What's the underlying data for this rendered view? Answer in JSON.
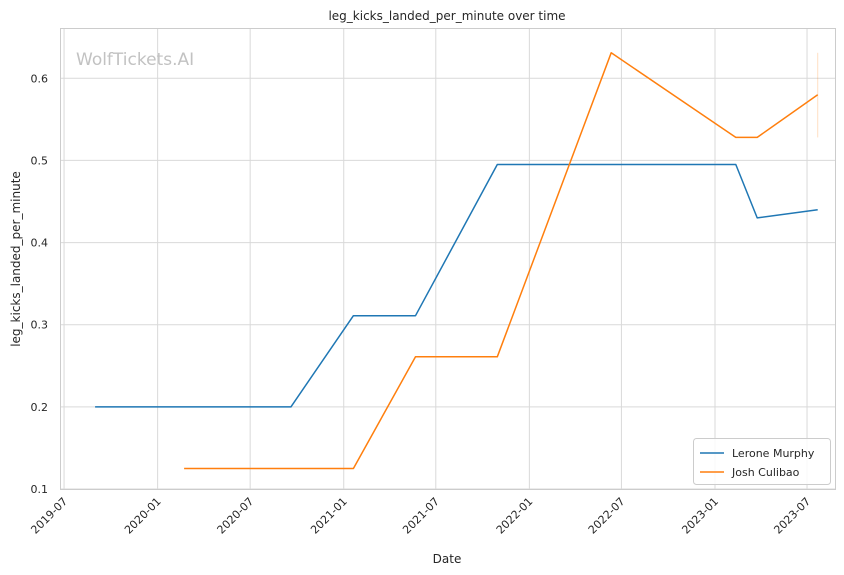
{
  "chart_data": {
    "type": "line",
    "title": "leg_kicks_landed_per_minute over time",
    "xlabel": "Date",
    "ylabel": "leg_kicks_landed_per_minute",
    "watermark": "WolfTickets.AI",
    "x_ticks": [
      "2019-07",
      "2020-01",
      "2020-07",
      "2021-01",
      "2021-07",
      "2022-01",
      "2022-07",
      "2023-01",
      "2023-07"
    ],
    "y_ticks": [
      "0.1",
      "0.2",
      "0.3",
      "0.4",
      "0.5",
      "0.6"
    ],
    "xlim": [
      "2019-06-25",
      "2023-08-25"
    ],
    "ylim": [
      0.1,
      0.66
    ],
    "grid": true,
    "legend_position": "bottom-right",
    "series": [
      {
        "name": "Lerone Murphy",
        "color": "#1f77b4",
        "points": [
          {
            "x": "2019-08-31",
            "y": 0.2
          },
          {
            "x": "2020-09-19",
            "y": 0.2
          },
          {
            "x": "2021-01-20",
            "y": 0.311
          },
          {
            "x": "2021-05-22",
            "y": 0.311
          },
          {
            "x": "2021-10-30",
            "y": 0.495
          },
          {
            "x": "2023-02-11",
            "y": 0.495
          },
          {
            "x": "2023-03-25",
            "y": 0.43
          },
          {
            "x": "2023-07-22",
            "y": 0.44
          }
        ]
      },
      {
        "name": "Josh Culibao",
        "color": "#ff7f0e",
        "points": [
          {
            "x": "2020-02-22",
            "y": 0.125
          },
          {
            "x": "2021-01-20",
            "y": 0.125
          },
          {
            "x": "2021-05-22",
            "y": 0.261
          },
          {
            "x": "2021-10-30",
            "y": 0.261
          },
          {
            "x": "2022-06-11",
            "y": 0.631
          },
          {
            "x": "2023-02-11",
            "y": 0.528
          },
          {
            "x": "2023-03-25",
            "y": 0.528
          },
          {
            "x": "2023-07-22",
            "y": 0.58
          }
        ]
      }
    ],
    "band": {
      "x": "2023-07-22",
      "y_low": 0.528,
      "y_high": 0.631,
      "color": "#ff7f0e"
    }
  }
}
